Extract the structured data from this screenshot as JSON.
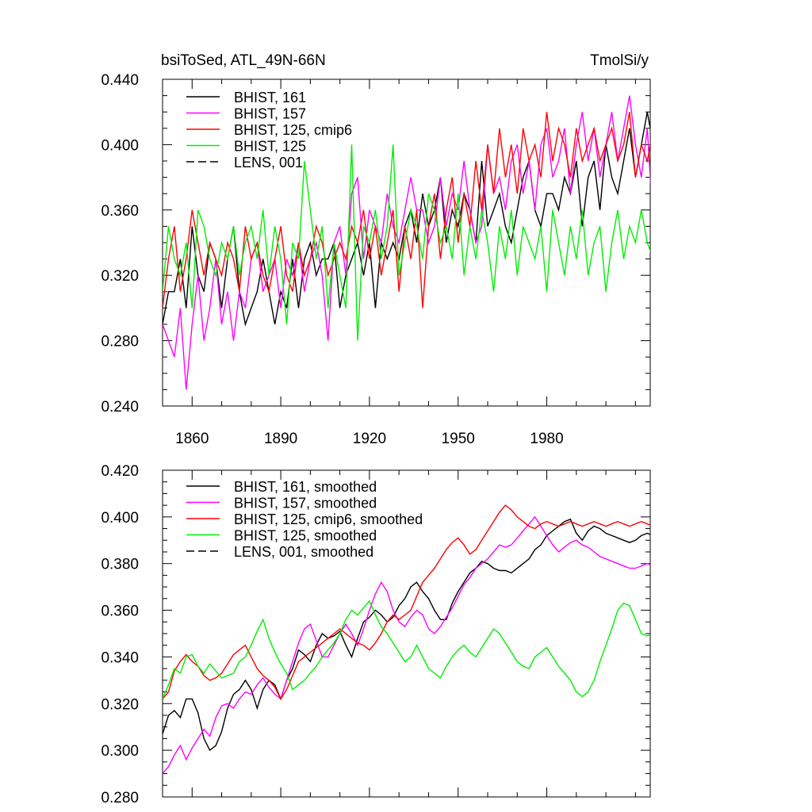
{
  "chart_data": [
    {
      "type": "line",
      "title_left": "bsiToSed, ATL_49N-66N",
      "title_right": "TmolSi/y",
      "xlim": [
        1850,
        2015
      ],
      "ylim": [
        0.24,
        0.44
      ],
      "x_ticks": [
        1860,
        1890,
        1920,
        1950,
        1980
      ],
      "y_ticks": [
        0.24,
        0.28,
        0.32,
        0.36,
        0.4,
        0.44
      ],
      "y_tick_labels": [
        "0.240",
        "0.280",
        "0.320",
        "0.360",
        "0.400",
        "0.440"
      ],
      "legend_position": "top-left",
      "x_start": 1850,
      "x_step": 2,
      "series": [
        {
          "name": "BHIST, 161",
          "color": "#000000",
          "dash": "solid",
          "values": [
            0.29,
            0.31,
            0.31,
            0.33,
            0.3,
            0.35,
            0.32,
            0.31,
            0.34,
            0.33,
            0.3,
            0.33,
            0.35,
            0.31,
            0.29,
            0.3,
            0.31,
            0.33,
            0.31,
            0.29,
            0.31,
            0.3,
            0.33,
            0.3,
            0.33,
            0.34,
            0.32,
            0.33,
            0.33,
            0.34,
            0.3,
            0.32,
            0.33,
            0.34,
            0.32,
            0.34,
            0.3,
            0.34,
            0.33,
            0.34,
            0.33,
            0.35,
            0.36,
            0.34,
            0.37,
            0.35,
            0.36,
            0.38,
            0.34,
            0.36,
            0.35,
            0.37,
            0.36,
            0.34,
            0.39,
            0.35,
            0.36,
            0.37,
            0.35,
            0.34,
            0.36,
            0.38,
            0.39,
            0.36,
            0.35,
            0.37,
            0.37,
            0.36,
            0.38,
            0.37,
            0.39,
            0.35,
            0.38,
            0.39,
            0.36,
            0.4,
            0.38,
            0.37,
            0.39,
            0.41,
            0.38,
            0.4,
            0.42,
            0.4,
            0.43
          ]
        },
        {
          "name": "BHIST, 157",
          "color": "#ff00ff",
          "dash": "solid",
          "values": [
            0.29,
            0.28,
            0.27,
            0.3,
            0.25,
            0.29,
            0.32,
            0.28,
            0.3,
            0.33,
            0.29,
            0.31,
            0.28,
            0.31,
            0.3,
            0.33,
            0.34,
            0.31,
            0.32,
            0.33,
            0.3,
            0.33,
            0.32,
            0.34,
            0.31,
            0.33,
            0.34,
            0.32,
            0.28,
            0.34,
            0.35,
            0.32,
            0.37,
            0.38,
            0.33,
            0.36,
            0.35,
            0.34,
            0.37,
            0.35,
            0.34,
            0.36,
            0.38,
            0.36,
            0.36,
            0.34,
            0.35,
            0.38,
            0.35,
            0.37,
            0.36,
            0.39,
            0.36,
            0.34,
            0.35,
            0.4,
            0.37,
            0.38,
            0.36,
            0.39,
            0.4,
            0.37,
            0.39,
            0.36,
            0.4,
            0.41,
            0.38,
            0.39,
            0.41,
            0.37,
            0.4,
            0.42,
            0.39,
            0.41,
            0.38,
            0.4,
            0.42,
            0.39,
            0.41,
            0.43,
            0.4,
            0.38,
            0.41,
            0.35,
            0.38
          ]
        },
        {
          "name": "BHIST, 125, cmip6",
          "color": "#ff0000",
          "dash": "solid",
          "values": [
            0.3,
            0.33,
            0.35,
            0.31,
            0.33,
            0.36,
            0.34,
            0.32,
            0.34,
            0.33,
            0.32,
            0.34,
            0.33,
            0.31,
            0.35,
            0.33,
            0.34,
            0.32,
            0.31,
            0.33,
            0.35,
            0.32,
            0.31,
            0.34,
            0.32,
            0.33,
            0.35,
            0.34,
            0.32,
            0.33,
            0.34,
            0.33,
            0.35,
            0.34,
            0.36,
            0.33,
            0.35,
            0.32,
            0.34,
            0.36,
            0.31,
            0.35,
            0.33,
            0.36,
            0.3,
            0.35,
            0.37,
            0.33,
            0.36,
            0.38,
            0.34,
            0.37,
            0.35,
            0.39,
            0.36,
            0.4,
            0.37,
            0.41,
            0.38,
            0.4,
            0.37,
            0.41,
            0.39,
            0.4,
            0.38,
            0.42,
            0.39,
            0.41,
            0.4,
            0.38,
            0.41,
            0.39,
            0.4,
            0.41,
            0.39,
            0.4,
            0.41,
            0.39,
            0.4,
            0.42,
            0.38,
            0.4,
            0.39,
            0.41,
            0.4
          ]
        },
        {
          "name": "BHIST, 125",
          "color": "#00ee00",
          "dash": "solid",
          "values": [
            0.31,
            0.35,
            0.33,
            0.32,
            0.34,
            0.3,
            0.36,
            0.35,
            0.33,
            0.32,
            0.34,
            0.33,
            0.35,
            0.32,
            0.34,
            0.35,
            0.33,
            0.36,
            0.32,
            0.35,
            0.33,
            0.29,
            0.34,
            0.33,
            0.39,
            0.36,
            0.33,
            0.35,
            0.3,
            0.34,
            0.32,
            0.3,
            0.4,
            0.28,
            0.35,
            0.34,
            0.36,
            0.33,
            0.35,
            0.4,
            0.32,
            0.34,
            0.36,
            0.35,
            0.33,
            0.37,
            0.36,
            0.34,
            0.35,
            0.33,
            0.37,
            0.32,
            0.35,
            0.33,
            0.36,
            0.34,
            0.31,
            0.35,
            0.33,
            0.36,
            0.32,
            0.35,
            0.34,
            0.33,
            0.35,
            0.31,
            0.36,
            0.34,
            0.32,
            0.35,
            0.33,
            0.36,
            0.32,
            0.34,
            0.35,
            0.31,
            0.34,
            0.36,
            0.33,
            0.35,
            0.34,
            0.36,
            0.34,
            0.33,
            0.35
          ]
        },
        {
          "name": "LENS, 001",
          "color": "#000000",
          "dash": "dashed",
          "values": []
        }
      ]
    },
    {
      "type": "line",
      "xlim": [
        1850,
        2015
      ],
      "ylim": [
        0.28,
        0.42
      ],
      "x_ticks": [
        1860,
        1890,
        1920,
        1950,
        1980
      ],
      "y_ticks": [
        0.28,
        0.3,
        0.32,
        0.34,
        0.36,
        0.38,
        0.4,
        0.42
      ],
      "y_tick_labels": [
        "0.280",
        "0.300",
        "0.320",
        "0.340",
        "0.360",
        "0.380",
        "0.400",
        "0.420"
      ],
      "legend_position": "top-left",
      "x_start": 1850,
      "x_step": 2,
      "series": [
        {
          "name": "BHIST, 161, smoothed",
          "color": "#000000",
          "dash": "solid",
          "values": [
            0.307,
            0.315,
            0.317,
            0.314,
            0.322,
            0.322,
            0.316,
            0.305,
            0.3,
            0.302,
            0.308,
            0.318,
            0.324,
            0.326,
            0.33,
            0.326,
            0.318,
            0.326,
            0.33,
            0.328,
            0.322,
            0.33,
            0.335,
            0.343,
            0.341,
            0.338,
            0.345,
            0.35,
            0.348,
            0.349,
            0.351,
            0.345,
            0.34,
            0.348,
            0.355,
            0.357,
            0.36,
            0.358,
            0.355,
            0.357,
            0.362,
            0.365,
            0.37,
            0.372,
            0.368,
            0.365,
            0.36,
            0.356,
            0.356,
            0.363,
            0.368,
            0.372,
            0.376,
            0.378,
            0.381,
            0.38,
            0.378,
            0.377,
            0.377,
            0.376,
            0.378,
            0.38,
            0.382,
            0.386,
            0.388,
            0.392,
            0.394,
            0.396,
            0.398,
            0.399,
            0.393,
            0.39,
            0.394,
            0.396,
            0.395,
            0.393,
            0.392,
            0.391,
            0.39,
            0.389,
            0.39,
            0.392,
            0.393,
            0.392,
            0.394
          ]
        },
        {
          "name": "BHIST, 157, smoothed",
          "color": "#ff00ff",
          "dash": "solid",
          "values": [
            0.29,
            0.293,
            0.298,
            0.302,
            0.296,
            0.301,
            0.305,
            0.309,
            0.306,
            0.314,
            0.319,
            0.32,
            0.318,
            0.322,
            0.325,
            0.324,
            0.328,
            0.331,
            0.327,
            0.324,
            0.322,
            0.33,
            0.338,
            0.346,
            0.352,
            0.354,
            0.347,
            0.34,
            0.34,
            0.345,
            0.35,
            0.354,
            0.35,
            0.345,
            0.352,
            0.36,
            0.367,
            0.372,
            0.368,
            0.36,
            0.355,
            0.353,
            0.357,
            0.36,
            0.358,
            0.352,
            0.35,
            0.353,
            0.357,
            0.361,
            0.366,
            0.371,
            0.374,
            0.378,
            0.38,
            0.382,
            0.385,
            0.388,
            0.387,
            0.388,
            0.391,
            0.394,
            0.397,
            0.4,
            0.396,
            0.392,
            0.388,
            0.385,
            0.387,
            0.389,
            0.39,
            0.388,
            0.387,
            0.385,
            0.383,
            0.382,
            0.381,
            0.38,
            0.379,
            0.378,
            0.378,
            0.379,
            0.38,
            0.379,
            0.38
          ]
        },
        {
          "name": "BHIST, 125, cmip6, smoothed",
          "color": "#ff0000",
          "dash": "solid",
          "values": [
            0.322,
            0.325,
            0.334,
            0.338,
            0.341,
            0.338,
            0.336,
            0.332,
            0.33,
            0.331,
            0.333,
            0.337,
            0.341,
            0.343,
            0.345,
            0.34,
            0.335,
            0.332,
            0.33,
            0.327,
            0.322,
            0.326,
            0.332,
            0.338,
            0.34,
            0.342,
            0.344,
            0.346,
            0.348,
            0.35,
            0.352,
            0.35,
            0.348,
            0.346,
            0.345,
            0.343,
            0.346,
            0.35,
            0.355,
            0.358,
            0.356,
            0.358,
            0.36,
            0.366,
            0.372,
            0.375,
            0.378,
            0.382,
            0.386,
            0.389,
            0.391,
            0.388,
            0.384,
            0.386,
            0.39,
            0.394,
            0.398,
            0.402,
            0.405,
            0.403,
            0.4,
            0.398,
            0.396,
            0.395,
            0.397,
            0.398,
            0.397,
            0.396,
            0.397,
            0.398,
            0.397,
            0.396,
            0.397,
            0.398,
            0.397,
            0.396,
            0.397,
            0.398,
            0.397,
            0.396,
            0.397,
            0.398,
            0.397,
            0.396,
            0.397
          ]
        },
        {
          "name": "BHIST, 125, smoothed",
          "color": "#00ee00",
          "dash": "solid",
          "values": [
            0.322,
            0.328,
            0.335,
            0.333,
            0.34,
            0.341,
            0.336,
            0.333,
            0.337,
            0.334,
            0.331,
            0.332,
            0.333,
            0.338,
            0.34,
            0.345,
            0.351,
            0.356,
            0.348,
            0.342,
            0.337,
            0.333,
            0.326,
            0.328,
            0.33,
            0.333,
            0.336,
            0.34,
            0.343,
            0.346,
            0.35,
            0.356,
            0.36,
            0.358,
            0.361,
            0.364,
            0.358,
            0.353,
            0.35,
            0.346,
            0.342,
            0.338,
            0.34,
            0.345,
            0.34,
            0.335,
            0.333,
            0.331,
            0.336,
            0.34,
            0.343,
            0.345,
            0.342,
            0.34,
            0.344,
            0.348,
            0.352,
            0.35,
            0.346,
            0.342,
            0.338,
            0.336,
            0.335,
            0.34,
            0.342,
            0.344,
            0.34,
            0.336,
            0.333,
            0.33,
            0.325,
            0.323,
            0.325,
            0.33,
            0.338,
            0.345,
            0.352,
            0.36,
            0.363,
            0.362,
            0.356,
            0.35,
            0.349,
            0.35,
            0.345
          ]
        },
        {
          "name": "LENS, 001, smoothed",
          "color": "#000000",
          "dash": "dashed",
          "values": []
        }
      ]
    }
  ]
}
